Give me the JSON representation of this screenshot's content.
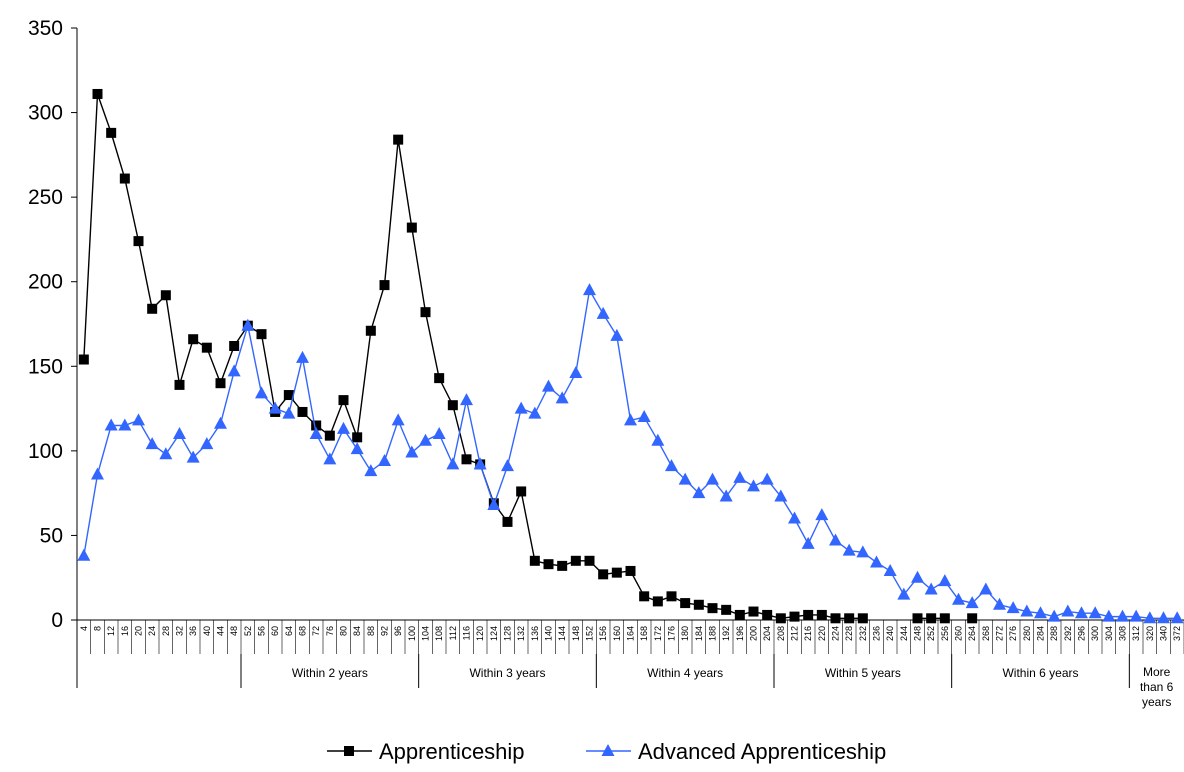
{
  "chart_data": {
    "type": "line",
    "title": "",
    "xlabel": "",
    "ylabel": "",
    "ylim": [
      0,
      350
    ],
    "yticks": [
      0,
      50,
      100,
      150,
      200,
      250,
      300,
      350
    ],
    "categories": [
      "4",
      "8",
      "12",
      "16",
      "20",
      "24",
      "28",
      "32",
      "36",
      "40",
      "44",
      "48",
      "52",
      "56",
      "60",
      "64",
      "68",
      "72",
      "76",
      "80",
      "84",
      "88",
      "92",
      "96",
      "100",
      "104",
      "108",
      "112",
      "116",
      "120",
      "124",
      "128",
      "132",
      "136",
      "140",
      "144",
      "148",
      "152",
      "156",
      "160",
      "164",
      "168",
      "172",
      "176",
      "180",
      "184",
      "188",
      "192",
      "196",
      "200",
      "204",
      "208",
      "212",
      "216",
      "220",
      "224",
      "228",
      "232",
      "236",
      "240",
      "244",
      "248",
      "252",
      "256",
      "260",
      "264",
      "268",
      "272",
      "276",
      "280",
      "284",
      "288",
      "292",
      "296",
      "300",
      "304",
      "308",
      "312",
      "320",
      "340",
      "372"
    ],
    "groups": [
      {
        "label": "",
        "start": 0,
        "end": 11
      },
      {
        "label": "Within 2 years",
        "start": 12,
        "end": 24
      },
      {
        "label": "Within 3 years",
        "start": 25,
        "end": 37
      },
      {
        "label": "Within 4 years",
        "start": 38,
        "end": 50
      },
      {
        "label": "Within 5 years",
        "start": 51,
        "end": 63
      },
      {
        "label": "Within 6 years",
        "start": 64,
        "end": 76
      },
      {
        "label": "More than 6 years",
        "start": 77,
        "end": 80
      }
    ],
    "series": [
      {
        "name": "Apprenticeship",
        "color": "#000000",
        "marker": "square",
        "values": [
          154,
          311,
          288,
          261,
          224,
          184,
          192,
          139,
          166,
          161,
          140,
          162,
          174,
          169,
          123,
          133,
          123,
          115,
          109,
          130,
          108,
          171,
          198,
          284,
          232,
          182,
          143,
          127,
          95,
          92,
          69,
          58,
          76,
          35,
          33,
          32,
          35,
          35,
          27,
          28,
          29,
          14,
          11,
          14,
          10,
          9,
          7,
          6,
          3,
          5,
          3,
          1,
          2,
          3,
          3,
          1,
          1,
          1,
          null,
          null,
          null,
          1,
          1,
          1,
          null,
          1,
          null,
          null,
          null,
          null,
          null,
          null,
          null,
          null,
          null,
          null,
          null,
          null,
          null,
          null,
          null
        ]
      },
      {
        "name": "Advanced Apprenticeship",
        "color": "#3366ff",
        "marker": "triangle",
        "values": [
          38,
          86,
          115,
          115,
          118,
          104,
          98,
          110,
          96,
          104,
          116,
          147,
          174,
          134,
          125,
          122,
          155,
          110,
          95,
          113,
          101,
          88,
          94,
          118,
          99,
          106,
          110,
          92,
          130,
          92,
          68,
          91,
          125,
          122,
          138,
          131,
          146,
          195,
          181,
          168,
          118,
          120,
          106,
          91,
          83,
          75,
          83,
          73,
          84,
          79,
          83,
          73,
          60,
          45,
          62,
          47,
          41,
          40,
          34,
          29,
          15,
          25,
          18,
          23,
          12,
          10,
          18,
          9,
          7,
          5,
          4,
          2,
          5,
          4,
          4,
          2,
          2,
          2,
          1,
          1,
          1
        ]
      }
    ],
    "legend_position": "bottom",
    "grid": false
  }
}
